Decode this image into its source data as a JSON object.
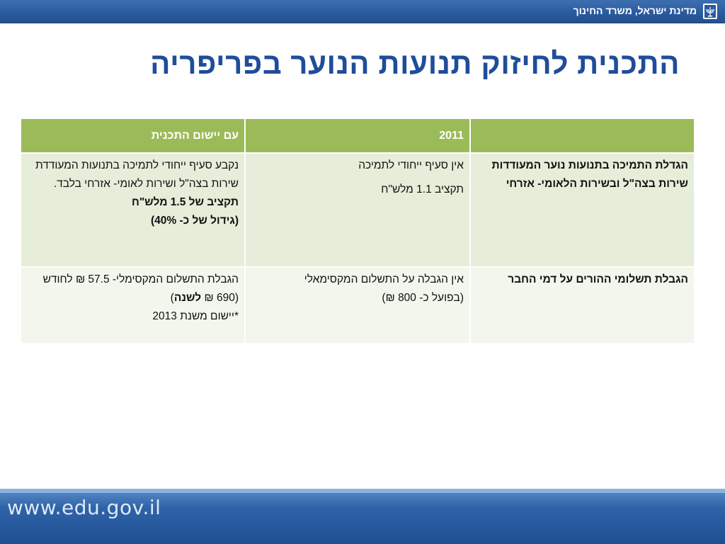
{
  "header": {
    "ministry": "מדינת ישראל, משרד החינוך",
    "emblem_icon": "menorah-emblem-icon"
  },
  "title": "התכנית לחיזוק תנועות הנוער בפריפריה",
  "table": {
    "headers": [
      "",
      "2011",
      "עם יישום התכנית"
    ],
    "rows": [
      {
        "label": "הגדלת התמיכה בתנועות נוער המעודדות שירות בצה\"ל ובשירות הלאומי- אזרחי",
        "col2011": {
          "line1": "אין סעיף ייחודי לתמיכה",
          "line2": "תקציב 1.1 מלש\"ח"
        },
        "with_plan": {
          "text": "נקבע סעיף ייחודי לתמיכה בתנועות המעודדת שירות בצה\"ל ושירות לאומי- אזרחי בלבד.",
          "bold1": "תקציב של 1.5 מלש\"ח",
          "bold2": "(גידול של כ- 40%)"
        }
      },
      {
        "label": "הגבלת תשלומי ההורים על דמי החבר",
        "col2011": {
          "line1": "אין הגבלה על התשלום המקסימאלי",
          "line2": "(בפועל כ- 800 ₪)"
        },
        "with_plan": {
          "text1": "הגבלת התשלום המקסימלי- 57.5 ₪ לחודש  (690 ₪",
          "bold": "לשנה",
          "text2": ")",
          "note": "*יישום משנת 2013"
        }
      }
    ]
  },
  "footer": {
    "url": "www.edu.gov.il"
  },
  "colors": {
    "top_bar": "#2a5a9e",
    "title": "#1f4d9a",
    "header_row": "#9bbb59",
    "row1_bg": "#e6edd9",
    "row2_bg": "#f2f6ec",
    "bottom_bar": "#2f63a8"
  }
}
